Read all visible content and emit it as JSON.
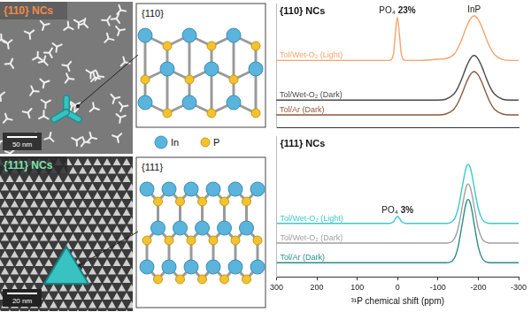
{
  "sem_images": [
    {
      "label": "{110} NCs",
      "scale_bar": "50 nm"
    },
    {
      "label": "{111} NCs",
      "scale_bar": "20 nm"
    }
  ],
  "structures": [
    {
      "label": "{110}"
    },
    {
      "label": "{111}"
    }
  ],
  "atom_legend": [
    {
      "name": "In",
      "color": "#5ab4dc"
    },
    {
      "name": "P",
      "color": "#f2c230"
    }
  ],
  "chart_data": [
    {
      "type": "line",
      "title": "{110} NCs",
      "x": [
        300,
        250,
        200,
        150,
        100,
        60,
        40,
        20,
        10,
        5,
        0,
        -5,
        -10,
        -20,
        -40,
        -60,
        -80,
        -100,
        -120,
        -140,
        -150,
        -160,
        -170,
        -175,
        -180,
        -185,
        -190,
        -200,
        -210,
        -220,
        -230,
        -240,
        -260,
        -280,
        -300
      ],
      "xlim": [
        300,
        -300
      ],
      "xticks": [
        300,
        200,
        100,
        0,
        -100,
        -200,
        -300
      ],
      "ylim": [
        0,
        10
      ],
      "tick_labels": false,
      "grid": false,
      "series": [
        {
          "name": "Tol/Wet-O₂ (Light)",
          "color": "#f5a46b",
          "values": [
            5.4,
            5.4,
            5.4,
            5.4,
            5.4,
            5.4,
            5.4,
            5.4,
            5.87,
            7.53,
            8.9,
            7.53,
            5.87,
            5.4,
            5.4,
            5.4,
            5.45,
            5.5,
            5.55,
            5.89,
            6.41,
            7.16,
            8.03,
            8.4,
            8.71,
            8.93,
            9.0,
            8.71,
            8.03,
            7.16,
            6.41,
            5.89,
            5.47,
            5.4,
            5.4
          ]
        },
        {
          "name": "Tol/Wet-O₂ (Dark)",
          "color": "#4a4a4a",
          "values": [
            2.2,
            2.2,
            2.2,
            2.2,
            2.2,
            2.2,
            2.2,
            2.2,
            2.2,
            2.2,
            2.2,
            2.2,
            2.2,
            2.2,
            2.2,
            2.2,
            2.2,
            2.2,
            2.27,
            2.69,
            3.21,
            3.96,
            4.83,
            5.2,
            5.51,
            5.73,
            5.8,
            5.51,
            4.83,
            3.96,
            3.21,
            2.69,
            2.27,
            2.2,
            2.2
          ]
        },
        {
          "name": "Tol/Ar (Dark)",
          "color": "#8b5a3c",
          "values": [
            1,
            1,
            1,
            1,
            1,
            1,
            1,
            1,
            1,
            1,
            1,
            1,
            1,
            1,
            1,
            1,
            1,
            1,
            1.07,
            1.47,
            1.98,
            2.72,
            3.56,
            3.92,
            4.22,
            4.43,
            4.5,
            4.22,
            3.56,
            2.72,
            1.98,
            1.47,
            1.07,
            1,
            1
          ]
        }
      ],
      "annotations": [
        {
          "text": "PO₄ 23%",
          "x": 0
        },
        {
          "text": "InP",
          "x": -190
        }
      ]
    },
    {
      "type": "line",
      "title": "{111} NCs",
      "x": [
        300,
        250,
        200,
        150,
        100,
        60,
        40,
        20,
        10,
        5,
        0,
        -5,
        -10,
        -20,
        -40,
        -60,
        -80,
        -100,
        -120,
        -140,
        -150,
        -160,
        -170,
        -175,
        -180,
        -185,
        -190,
        -200,
        -210,
        -220,
        -230,
        -240,
        -260,
        -280,
        -300
      ],
      "xlim": [
        300,
        -300
      ],
      "xticks": [
        300,
        200,
        100,
        0,
        -100,
        -200,
        -300
      ],
      "ylim": [
        0,
        10
      ],
      "tick_labels": "x",
      "grid": false,
      "x_label": "³¹P chemical shift (ppm)",
      "series": [
        {
          "name": "Tol/Wet-O₂ (Light)",
          "color": "#3ec9c9",
          "values": [
            3.8,
            3.8,
            3.8,
            3.8,
            3.8,
            3.8,
            3.8,
            3.8,
            3.92,
            4.15,
            4.3,
            4.15,
            3.92,
            3.8,
            3.8,
            3.8,
            3.8,
            3.8,
            3.8,
            4.08,
            4.85,
            6.35,
            7.77,
            8.0,
            7.77,
            7.16,
            6.35,
            4.85,
            4.08,
            3.85,
            3.8,
            3.8,
            3.8,
            3.8,
            3.8
          ]
        },
        {
          "name": "Tol/Wet-O₂ (Dark)",
          "color": "#a0a0a0",
          "values": [
            2.4,
            2.4,
            2.4,
            2.4,
            2.4,
            2.4,
            2.4,
            2.4,
            2.4,
            2.4,
            2.4,
            2.4,
            2.4,
            2.4,
            2.4,
            2.4,
            2.4,
            2.4,
            2.4,
            2.68,
            3.45,
            4.95,
            6.37,
            6.6,
            6.37,
            5.76,
            4.95,
            3.45,
            2.68,
            2.45,
            2.4,
            2.4,
            2.4,
            2.4,
            2.4
          ]
        },
        {
          "name": "Tol/Ar (Dark)",
          "color": "#2b8c8c",
          "values": [
            1,
            1,
            1,
            1,
            1,
            1,
            1,
            1,
            1,
            1,
            1,
            1,
            1,
            1,
            1,
            1,
            1,
            1,
            1,
            1.3,
            2.13,
            3.73,
            5.26,
            5.5,
            5.26,
            4.6,
            3.73,
            2.13,
            1.3,
            1.05,
            1,
            1,
            1,
            1,
            1
          ]
        }
      ],
      "annotations": [
        {
          "text": "PO₄ 3%",
          "x": 0
        }
      ]
    }
  ]
}
